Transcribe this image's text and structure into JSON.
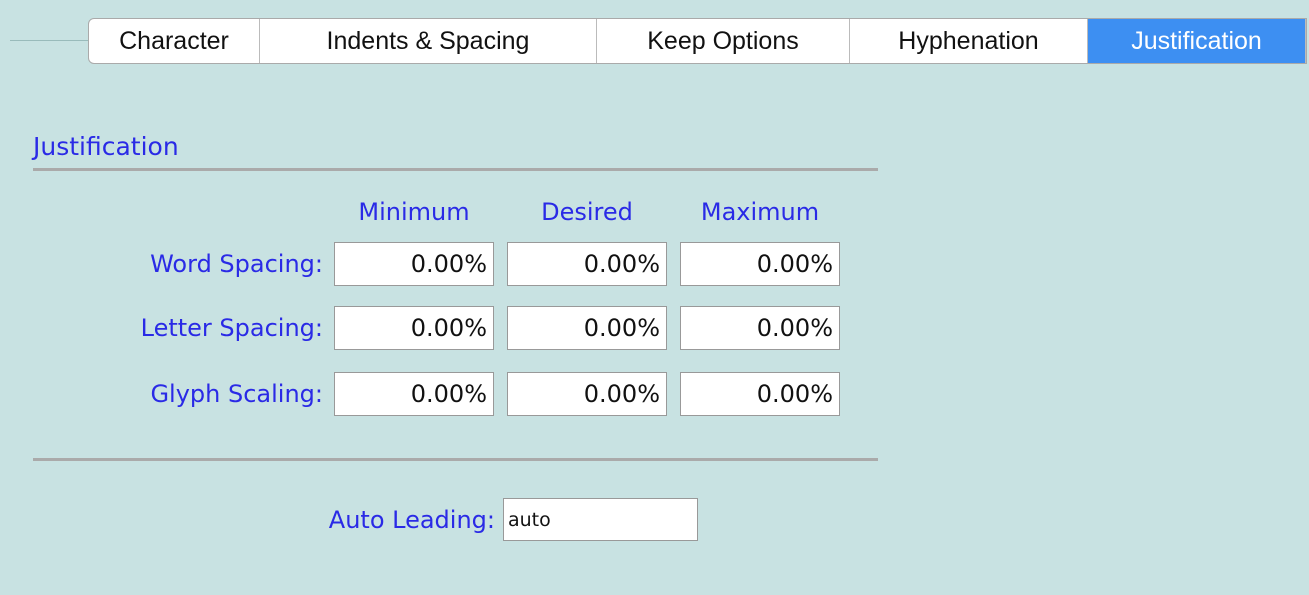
{
  "tabs": [
    "Character",
    "Indents & Spacing",
    "Keep Options",
    "Hyphenation",
    "Justification"
  ],
  "active_tab": 4,
  "section": {
    "title": "Justification",
    "columns": [
      "Minimum",
      "Desired",
      "Maximum"
    ],
    "rows": [
      {
        "label": "Word Spacing:",
        "values": [
          "0.00%",
          "0.00%",
          "0.00%"
        ]
      },
      {
        "label": "Letter Spacing:",
        "values": [
          "0.00%",
          "0.00%",
          "0.00%"
        ]
      },
      {
        "label": "Glyph Scaling:",
        "values": [
          "0.00%",
          "0.00%",
          "0.00%"
        ]
      }
    ]
  },
  "auto_leading": {
    "label": "Auto Leading:",
    "value": "auto"
  }
}
